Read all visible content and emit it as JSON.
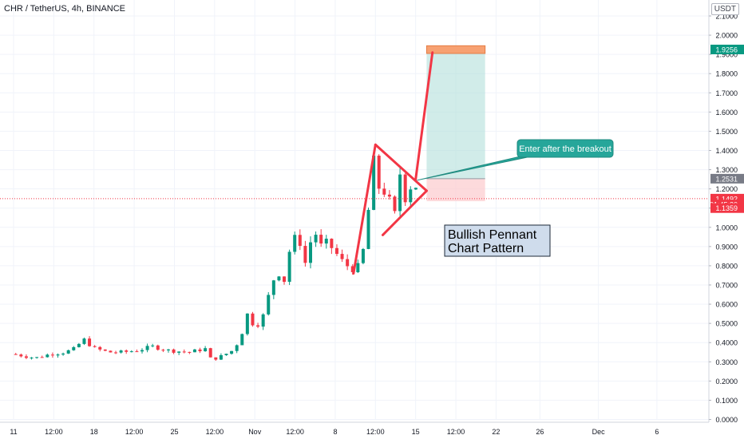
{
  "header": {
    "title": "CHR / TetherUS, 4h, BINANCE",
    "currency": "USDT"
  },
  "chart_data": {
    "type": "candlestick",
    "symbol": "CHR / TetherUS",
    "timeframe": "4h",
    "exchange": "BINANCE",
    "y_axis": {
      "min": 0.0,
      "max": 2.1,
      "ticks": [
        "0.0000",
        "0.1000",
        "0.2000",
        "0.3000",
        "0.4000",
        "0.5000",
        "0.6000",
        "0.7000",
        "0.8000",
        "0.9000",
        "1.0000",
        "1.1000",
        "1.2000",
        "1.3000",
        "1.4000",
        "1.5000",
        "1.6000",
        "1.7000",
        "1.8000",
        "1.9000",
        "2.0000",
        "2.1000"
      ]
    },
    "x_axis": {
      "range": [
        0,
        95
      ],
      "ticks": [
        {
          "t": 0,
          "label": "11"
        },
        {
          "t": 5.5,
          "label": "12:00"
        },
        {
          "t": 11,
          "label": "18"
        },
        {
          "t": 16.5,
          "label": "12:00"
        },
        {
          "t": 22,
          "label": "25"
        },
        {
          "t": 27.5,
          "label": "12:00"
        },
        {
          "t": 33,
          "label": "Nov"
        },
        {
          "t": 38.5,
          "label": "12:00"
        },
        {
          "t": 44,
          "label": "8"
        },
        {
          "t": 49.5,
          "label": "12:00"
        },
        {
          "t": 55,
          "label": "15"
        },
        {
          "t": 60.5,
          "label": "12:00"
        },
        {
          "t": 66,
          "label": "22"
        },
        {
          "t": 72,
          "label": "26"
        },
        {
          "t": 80,
          "label": "Dec"
        },
        {
          "t": 88,
          "label": "6"
        }
      ]
    },
    "price_tags": [
      {
        "label": "1.9256",
        "value": 1.9256,
        "color": "#089981"
      },
      {
        "label": "1.2531",
        "value": 1.2531,
        "color": "#787b86"
      },
      {
        "label": "1.1492",
        "value": 1.1492,
        "color": "#f23645"
      },
      {
        "label": "01:45:30",
        "value": 1.119,
        "color": "#f23645"
      },
      {
        "label": "1.1359",
        "value": 1.1,
        "color": "#f23645"
      }
    ],
    "current_price": 1.1492,
    "price_path": [
      [
        0,
        0.34
      ],
      [
        3,
        0.32
      ],
      [
        5,
        0.34
      ],
      [
        7,
        0.35
      ],
      [
        8.5,
        0.37
      ],
      [
        9.5,
        0.42
      ],
      [
        11,
        0.37
      ],
      [
        13,
        0.35
      ],
      [
        15,
        0.35
      ],
      [
        17,
        0.36
      ],
      [
        19,
        0.38
      ],
      [
        21,
        0.36
      ],
      [
        24,
        0.35
      ],
      [
        26.5,
        0.37
      ],
      [
        27,
        0.31
      ],
      [
        28.5,
        0.33
      ],
      [
        30,
        0.36
      ],
      [
        31,
        0.42
      ],
      [
        32,
        0.55
      ],
      [
        33,
        0.48
      ],
      [
        34,
        0.52
      ],
      [
        35,
        0.66
      ],
      [
        36,
        0.78
      ],
      [
        37,
        0.72
      ],
      [
        38,
        0.93
      ],
      [
        39,
        0.95
      ],
      [
        40,
        0.8
      ],
      [
        41,
        1.0
      ],
      [
        42,
        0.9
      ],
      [
        43,
        0.92
      ],
      [
        44,
        0.87
      ],
      [
        45,
        0.82
      ],
      [
        46,
        0.79
      ],
      [
        47,
        0.78
      ],
      [
        48,
        0.9
      ],
      [
        49,
        1.25
      ],
      [
        49.5,
        1.42
      ],
      [
        50,
        1.2
      ],
      [
        50.5,
        1.28
      ],
      [
        51,
        1.05
      ],
      [
        51.5,
        1.15
      ],
      [
        52,
        1.02
      ],
      [
        52.5,
        1.18
      ],
      [
        53,
        1.32
      ],
      [
        53.5,
        1.14
      ],
      [
        54,
        1.25
      ],
      [
        54.5,
        1.19
      ],
      [
        55,
        1.22
      ],
      [
        55.5,
        1.15
      ]
    ],
    "trade_setup": {
      "start_t": 56.5,
      "end_t": 64.5,
      "stop_price": 1.1359,
      "entry_price": 1.2531,
      "target_price": 1.9256,
      "target_band": [
        1.905,
        1.945
      ],
      "profit_color": "#b2dfdb",
      "loss_color": "#fccbcd"
    },
    "pattern_lines": {
      "color": "#f23645",
      "pole": [
        [
          46.5,
          0.76
        ],
        [
          49.5,
          1.43
        ]
      ],
      "upper": [
        [
          49.5,
          1.43
        ],
        [
          56.5,
          1.19
        ]
      ],
      "lower": [
        [
          50.5,
          0.96
        ],
        [
          56.5,
          1.19
        ]
      ],
      "breakout": [
        [
          55,
          1.25
        ],
        [
          57.3,
          1.91
        ]
      ]
    },
    "annotations": [
      {
        "text": "Bullish Pennant",
        "line2": "Chart Pattern"
      },
      {
        "text": "Enter after the breakout"
      }
    ]
  }
}
